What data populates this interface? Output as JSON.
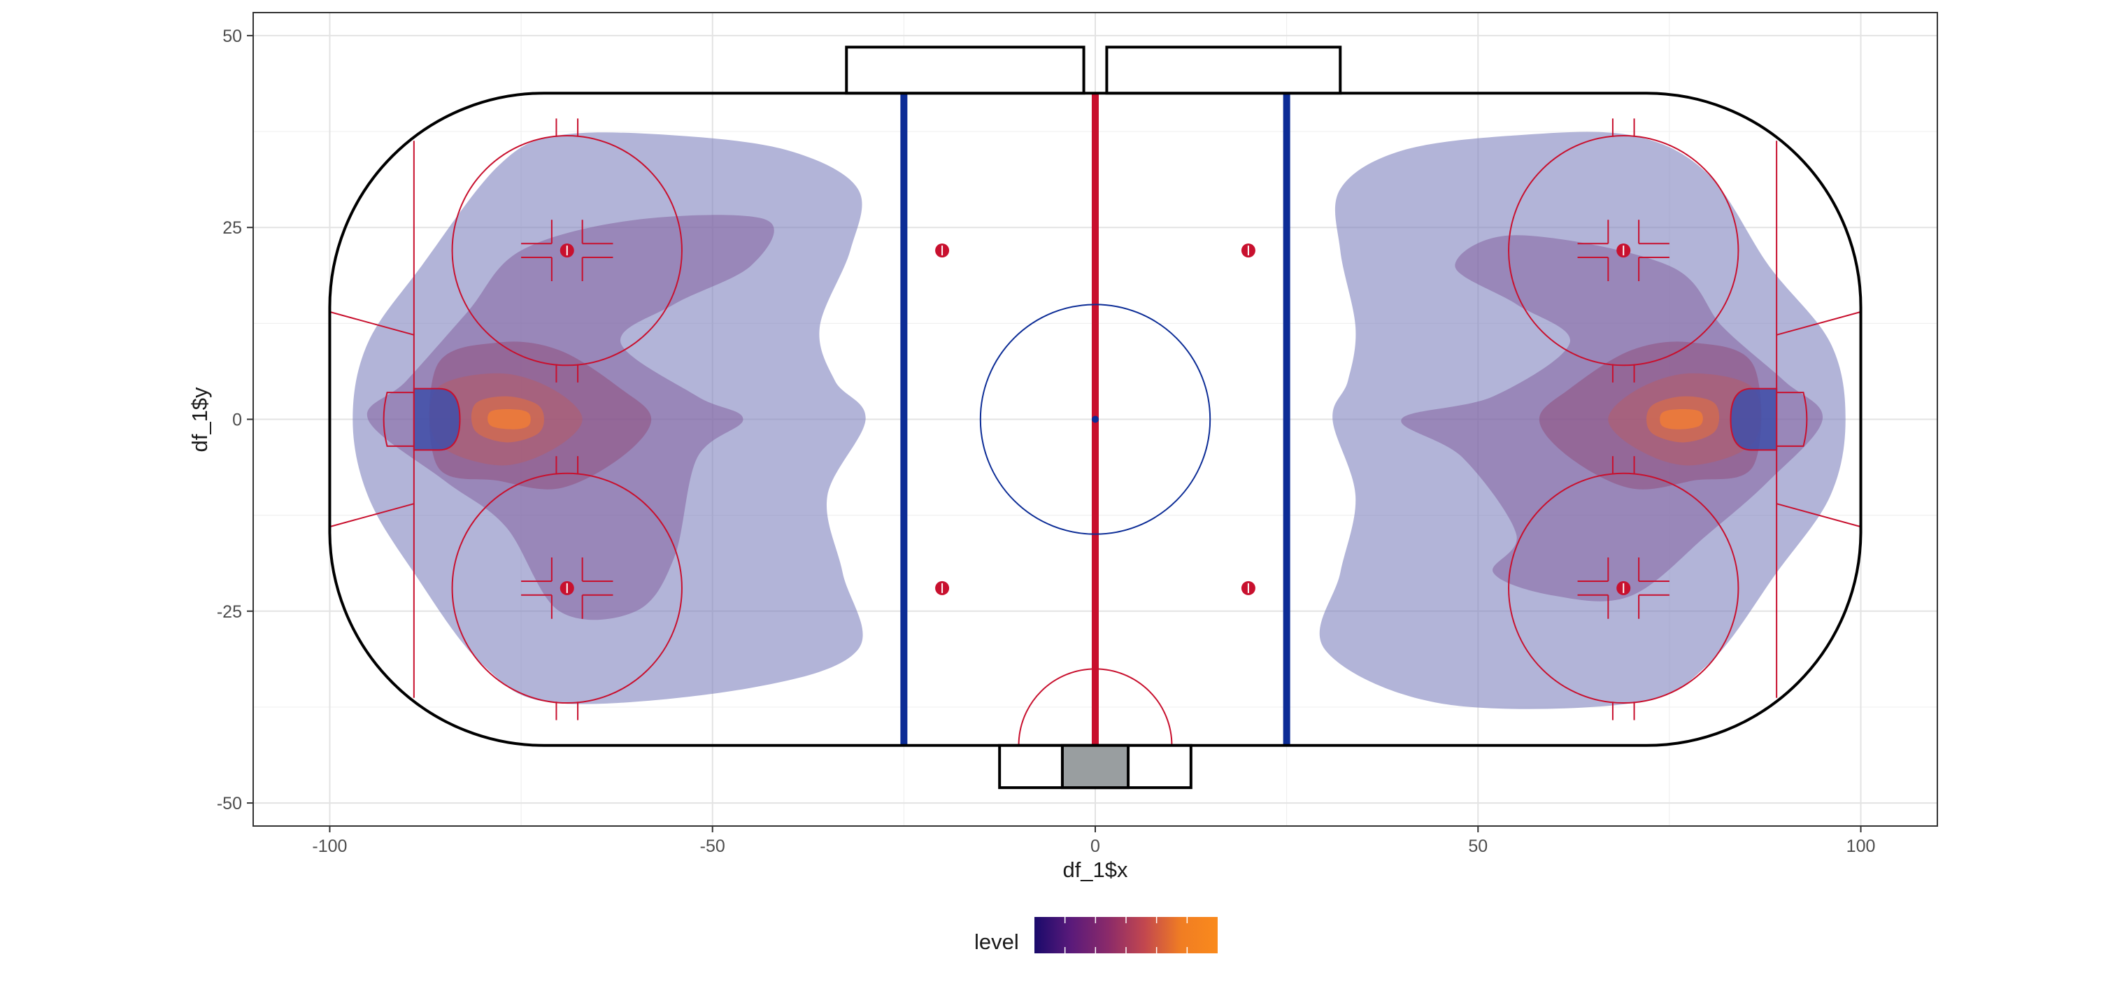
{
  "chart_data": {
    "type": "contour",
    "title": "",
    "xlabel": "df_1$x",
    "ylabel": "df_1$y",
    "xlim": [
      -110,
      110
    ],
    "ylim": [
      -53,
      53
    ],
    "xticks": [
      -100,
      -50,
      0,
      50,
      100
    ],
    "yticks": [
      -50,
      -25,
      0,
      25,
      50
    ],
    "grid": true,
    "legend": {
      "title": "level",
      "position": "bottom",
      "colors": [
        "#1a0a6b",
        "#5a1a7a",
        "#8a2a6a",
        "#c2474f",
        "#f07d23",
        "#fa8a1c"
      ]
    },
    "rink": {
      "x_range": [
        -100,
        100
      ],
      "y_range": [
        -42.5,
        42.5
      ],
      "corner_radius": 28,
      "goal_line_x": 89,
      "blue_line_x": 25,
      "center_circle_radius": 15,
      "faceoff_circle_radius": 15,
      "faceoff_dots": [
        [
          -69,
          22
        ],
        [
          -69,
          -22
        ],
        [
          69,
          22
        ],
        [
          69,
          -22
        ],
        [
          -20,
          22
        ],
        [
          -20,
          -22
        ],
        [
          20,
          22
        ],
        [
          20,
          -22
        ]
      ],
      "colors": {
        "boards": "#000000",
        "center_line": "#c8102e",
        "blue_line": "#0c2c96",
        "red_lines": "#c8102e",
        "crease": "#3f4fa8",
        "scorekeeper": "#999ea0"
      }
    },
    "series": [
      {
        "level": 1,
        "color": "#7b7dbb",
        "opacity": 0.58,
        "points": [
          [
            -70,
            37
          ],
          [
            -55,
            37
          ],
          [
            -40,
            35
          ],
          [
            -31,
            30
          ],
          [
            -32,
            22
          ],
          [
            -36,
            12
          ],
          [
            -34,
            5
          ],
          [
            -30,
            0
          ],
          [
            -35,
            -10
          ],
          [
            -33,
            -20
          ],
          [
            -31,
            -30
          ],
          [
            -45,
            -35
          ],
          [
            -70,
            -37
          ],
          [
            -80,
            -32
          ],
          [
            -89,
            -20
          ],
          [
            -95,
            -10
          ],
          [
            -97,
            0
          ],
          [
            -95,
            10
          ],
          [
            -88,
            20
          ],
          [
            -78,
            33
          ]
        ]
      },
      {
        "level": 1,
        "color": "#7b7dbb",
        "opacity": 0.58,
        "points": [
          [
            70,
            37
          ],
          [
            55,
            37
          ],
          [
            40,
            35
          ],
          [
            32,
            30
          ],
          [
            32,
            22
          ],
          [
            34,
            12
          ],
          [
            33,
            5
          ],
          [
            31,
            0
          ],
          [
            34,
            -10
          ],
          [
            32,
            -20
          ],
          [
            30,
            -30
          ],
          [
            45,
            -37
          ],
          [
            70,
            -37
          ],
          [
            80,
            -32
          ],
          [
            89,
            -20
          ],
          [
            96,
            -10
          ],
          [
            98,
            0
          ],
          [
            96,
            10
          ],
          [
            88,
            20
          ],
          [
            80,
            32
          ]
        ]
      },
      {
        "level": 2,
        "color": "#7f5a9a",
        "opacity": 0.5,
        "points": [
          [
            -90,
            5
          ],
          [
            -82,
            14
          ],
          [
            -75,
            22
          ],
          [
            -60,
            26
          ],
          [
            -43,
            26
          ],
          [
            -45,
            20
          ],
          [
            -55,
            15
          ],
          [
            -62,
            10
          ],
          [
            -52,
            3
          ],
          [
            -46,
            0
          ],
          [
            -52,
            -5
          ],
          [
            -55,
            -18
          ],
          [
            -60,
            -25
          ],
          [
            -70,
            -25
          ],
          [
            -77,
            -14
          ],
          [
            -85,
            -8
          ],
          [
            -95,
            0
          ]
        ]
      },
      {
        "level": 2,
        "color": "#7f5a9a",
        "opacity": 0.5,
        "points": [
          [
            90,
            5
          ],
          [
            82,
            12
          ],
          [
            75,
            20
          ],
          [
            55,
            24
          ],
          [
            47,
            20
          ],
          [
            55,
            15
          ],
          [
            62,
            10
          ],
          [
            52,
            3
          ],
          [
            40,
            0
          ],
          [
            48,
            -5
          ],
          [
            55,
            -15
          ],
          [
            52,
            -20
          ],
          [
            60,
            -23
          ],
          [
            70,
            -23
          ],
          [
            80,
            -15
          ],
          [
            88,
            -8
          ],
          [
            95,
            0
          ]
        ]
      },
      {
        "level": 3,
        "color": "#8f4e7e",
        "opacity": 0.55,
        "points": [
          [
            -86,
            7
          ],
          [
            -78,
            10
          ],
          [
            -70,
            9
          ],
          [
            -62,
            4
          ],
          [
            -58,
            0
          ],
          [
            -62,
            -5
          ],
          [
            -70,
            -9
          ],
          [
            -78,
            -8
          ],
          [
            -86,
            -6
          ]
        ]
      },
      {
        "level": 3,
        "color": "#8f4e7e",
        "opacity": 0.55,
        "points": [
          [
            86,
            7
          ],
          [
            78,
            10
          ],
          [
            70,
            9
          ],
          [
            62,
            4
          ],
          [
            58,
            0
          ],
          [
            62,
            -5
          ],
          [
            70,
            -9
          ],
          [
            78,
            -8
          ],
          [
            86,
            -6
          ]
        ]
      },
      {
        "level": 4,
        "color": "#b45c69",
        "opacity": 0.55,
        "points": [
          [
            -86,
            4
          ],
          [
            -78,
            6
          ],
          [
            -71,
            4
          ],
          [
            -67,
            0
          ],
          [
            -71,
            -4
          ],
          [
            -78,
            -6
          ],
          [
            -86,
            -3
          ]
        ]
      },
      {
        "level": 4,
        "color": "#b45c69",
        "opacity": 0.55,
        "points": [
          [
            86,
            4
          ],
          [
            78,
            6
          ],
          [
            71,
            4
          ],
          [
            67,
            0
          ],
          [
            71,
            -4
          ],
          [
            78,
            -6
          ],
          [
            86,
            -3
          ]
        ]
      },
      {
        "level": 5,
        "color": "#d86c4a",
        "opacity": 0.7,
        "points": [
          [
            -81,
            2
          ],
          [
            -77,
            3
          ],
          [
            -73,
            2
          ],
          [
            -72,
            0
          ],
          [
            -73,
            -2
          ],
          [
            -77,
            -3
          ],
          [
            -81,
            -1.5
          ]
        ]
      },
      {
        "level": 5,
        "color": "#d86c4a",
        "opacity": 0.7,
        "points": [
          [
            81,
            2
          ],
          [
            77,
            3
          ],
          [
            73,
            2
          ],
          [
            72,
            0
          ],
          [
            73,
            -2
          ],
          [
            77,
            -3
          ],
          [
            81,
            -1.5
          ]
        ]
      },
      {
        "level": 6,
        "color": "#ee7c38",
        "opacity": 0.85,
        "points": [
          [
            -79,
            1
          ],
          [
            -76,
            1.3
          ],
          [
            -74,
            0.8
          ],
          [
            -74,
            -0.8
          ],
          [
            -76,
            -1.3
          ],
          [
            -79,
            -0.8
          ]
        ]
      },
      {
        "level": 6,
        "color": "#ee7c38",
        "opacity": 0.85,
        "points": [
          [
            79,
            1
          ],
          [
            76,
            1.3
          ],
          [
            74,
            0.8
          ],
          [
            74,
            -0.8
          ],
          [
            76,
            -1.3
          ],
          [
            79,
            -0.8
          ]
        ]
      }
    ]
  }
}
